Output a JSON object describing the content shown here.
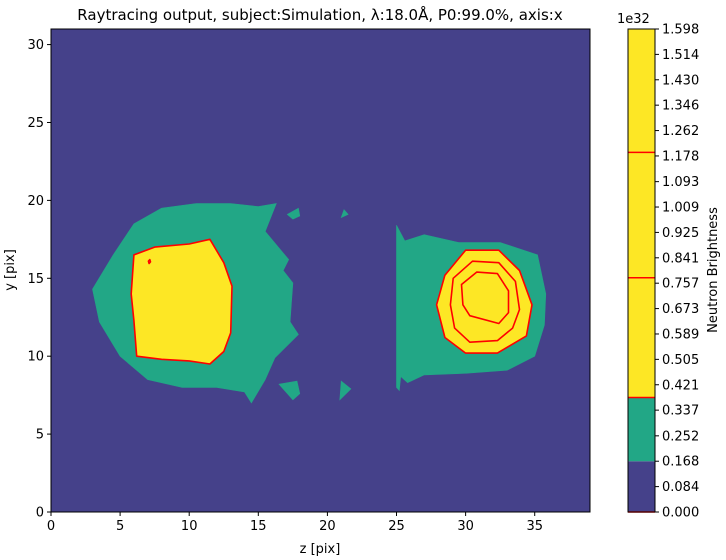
{
  "chart_data": {
    "type": "contour",
    "title": "Raytracing output, subject:Simulation, λ:18.0Å, P0:99.0%, axis:x",
    "xlabel": "z [pix]",
    "ylabel": "y [pix]",
    "xlim": [
      0,
      39
    ],
    "ylim": [
      0,
      31
    ],
    "x_ticks": [
      "0",
      "5",
      "10",
      "15",
      "20",
      "25",
      "30",
      "35"
    ],
    "y_ticks": [
      "0",
      "5",
      "10",
      "15",
      "20",
      "25",
      "30"
    ],
    "colorbar": {
      "label": "Neutron Brightness",
      "exponent_label": "1e32",
      "ticks": [
        "0.000",
        "0.084",
        "0.168",
        "0.252",
        "0.337",
        "0.421",
        "0.505",
        "0.589",
        "0.673",
        "0.757",
        "0.841",
        "0.925",
        "1.009",
        "1.093",
        "1.178",
        "1.262",
        "1.346",
        "1.430",
        "1.514",
        "1.598"
      ],
      "fill_levels": [
        0,
        0.168,
        0.379,
        1.598
      ],
      "fill_colors": [
        "#45418a",
        "#22a786",
        "#fde725"
      ],
      "line_levels": [
        0,
        0.379,
        0.775,
        1.19
      ],
      "line_color": "#ff0000"
    },
    "regions": [
      {
        "name": "background",
        "level": 0,
        "points": [
          [
            0,
            0
          ],
          [
            39,
            0
          ],
          [
            39,
            31
          ],
          [
            0,
            31
          ]
        ]
      },
      {
        "name": "left-outer",
        "level": 1,
        "points": [
          [
            4.5,
            16.5
          ],
          [
            6,
            18.5
          ],
          [
            8,
            19.5
          ],
          [
            10.5,
            19.8
          ],
          [
            13,
            19.8
          ],
          [
            15,
            19.6
          ],
          [
            16.3,
            19.8
          ],
          [
            15.5,
            18
          ],
          [
            17.2,
            16.2
          ],
          [
            16.8,
            15.5
          ],
          [
            17.5,
            14.7
          ],
          [
            17.4,
            13.5
          ],
          [
            17.3,
            12.2
          ],
          [
            17.9,
            11.4
          ],
          [
            16.2,
            9.9
          ],
          [
            15.5,
            8.5
          ],
          [
            14.5,
            7
          ],
          [
            14,
            7.7
          ],
          [
            12,
            8
          ],
          [
            9.5,
            8
          ],
          [
            7,
            8.5
          ],
          [
            5,
            10
          ],
          [
            3.5,
            12.2
          ],
          [
            3,
            14.3
          ]
        ]
      },
      {
        "name": "right-outer",
        "level": 1,
        "points": [
          [
            25,
            18.4
          ],
          [
            25.6,
            17.4
          ],
          [
            27,
            17.8
          ],
          [
            29.5,
            17.3
          ],
          [
            32.5,
            17.3
          ],
          [
            35.2,
            16.5
          ],
          [
            35.8,
            14
          ],
          [
            35.7,
            12
          ],
          [
            35,
            10
          ],
          [
            33,
            9.1
          ],
          [
            30,
            8.9
          ],
          [
            27,
            8.8
          ],
          [
            25.8,
            8.3
          ],
          [
            25.3,
            8.7
          ],
          [
            25.2,
            7.8
          ],
          [
            25,
            8
          ]
        ]
      },
      {
        "name": "blob-18-19",
        "level": 1,
        "points": [
          [
            17.1,
            19.1
          ],
          [
            17.9,
            19.5
          ],
          [
            18,
            19
          ],
          [
            17.5,
            18.8
          ]
        ]
      },
      {
        "name": "blob-21-19",
        "level": 1,
        "points": [
          [
            21.2,
            19.4
          ],
          [
            21.5,
            19.1
          ],
          [
            21,
            18.9
          ]
        ]
      },
      {
        "name": "blob-17-8",
        "level": 1,
        "points": [
          [
            16.5,
            8.2
          ],
          [
            17.8,
            8.4
          ],
          [
            18,
            7.6
          ],
          [
            17.5,
            7.2
          ]
        ]
      },
      {
        "name": "blob-21-8",
        "level": 1,
        "points": [
          [
            21,
            8.4
          ],
          [
            21.7,
            7.9
          ],
          [
            20.9,
            7.2
          ]
        ]
      },
      {
        "name": "left-inner",
        "level": 2,
        "points": [
          [
            6,
            16.5
          ],
          [
            7.5,
            17
          ],
          [
            10,
            17.2
          ],
          [
            11.5,
            17.5
          ],
          [
            12.5,
            16
          ],
          [
            13.1,
            14.5
          ],
          [
            13,
            11.5
          ],
          [
            12.5,
            10.3
          ],
          [
            11.5,
            9.5
          ],
          [
            10,
            9.7
          ],
          [
            8,
            9.8
          ],
          [
            6.2,
            10
          ],
          [
            6,
            12.3
          ],
          [
            5.8,
            14
          ]
        ]
      },
      {
        "name": "right-inner",
        "level": 2,
        "points": [
          [
            28.5,
            15.2
          ],
          [
            30,
            16.8
          ],
          [
            32.4,
            16.8
          ],
          [
            33.9,
            15.5
          ],
          [
            34.8,
            13.3
          ],
          [
            34.4,
            11.3
          ],
          [
            32.3,
            10.2
          ],
          [
            30,
            10.2
          ],
          [
            28.5,
            11.2
          ],
          [
            27.9,
            13.3
          ]
        ]
      }
    ],
    "contour_lines": [
      {
        "level": 0.379,
        "closed": true,
        "points": [
          [
            6,
            16.5
          ],
          [
            7.5,
            17
          ],
          [
            10,
            17.2
          ],
          [
            11.5,
            17.5
          ],
          [
            12.5,
            16
          ],
          [
            13.1,
            14.5
          ],
          [
            13,
            11.5
          ],
          [
            12.5,
            10.3
          ],
          [
            11.5,
            9.5
          ],
          [
            10,
            9.7
          ],
          [
            8,
            9.8
          ],
          [
            6.2,
            10
          ],
          [
            6,
            12.3
          ],
          [
            5.8,
            14
          ]
        ]
      },
      {
        "level": 0.379,
        "closed": true,
        "points": [
          [
            28.5,
            15.2
          ],
          [
            30,
            16.8
          ],
          [
            32.4,
            16.8
          ],
          [
            33.9,
            15.5
          ],
          [
            34.8,
            13.3
          ],
          [
            34.4,
            11.3
          ],
          [
            32.3,
            10.2
          ],
          [
            30,
            10.2
          ],
          [
            28.5,
            11.2
          ],
          [
            27.9,
            13.3
          ]
        ]
      },
      {
        "level": 0.775,
        "closed": true,
        "points": [
          [
            29.1,
            15
          ],
          [
            30.5,
            16.1
          ],
          [
            32.4,
            16
          ],
          [
            33.6,
            14.8
          ],
          [
            33.9,
            13
          ],
          [
            33.4,
            11.8
          ],
          [
            32.3,
            11
          ],
          [
            30.3,
            10.9
          ],
          [
            29.2,
            11.8
          ],
          [
            28.9,
            13.3
          ]
        ]
      },
      {
        "level": 1.19,
        "closed": true,
        "points": [
          [
            29.7,
            14.6
          ],
          [
            30.8,
            15.4
          ],
          [
            32.3,
            15.3
          ],
          [
            33.1,
            14.2
          ],
          [
            33.1,
            12.8
          ],
          [
            32.4,
            12.1
          ],
          [
            30.3,
            12.6
          ],
          [
            29.8,
            13.3
          ]
        ]
      },
      {
        "level": 0.379,
        "closed": true,
        "points": [
          [
            7.05,
            16.1
          ],
          [
            7.15,
            16.2
          ],
          [
            7.2,
            16.05
          ],
          [
            7.1,
            15.95
          ]
        ]
      }
    ]
  }
}
